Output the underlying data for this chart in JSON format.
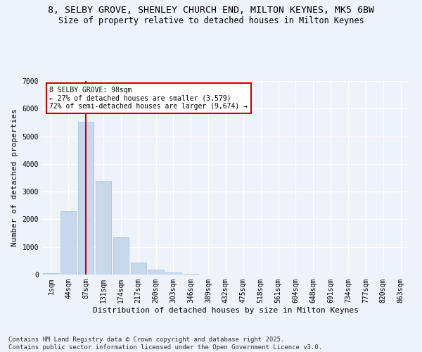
{
  "title1": "8, SELBY GROVE, SHENLEY CHURCH END, MILTON KEYNES, MK5 6BW",
  "title2": "Size of property relative to detached houses in Milton Keynes",
  "xlabel": "Distribution of detached houses by size in Milton Keynes",
  "ylabel": "Number of detached properties",
  "bar_color": "#c8d8ec",
  "bar_edge_color": "#aabfcf",
  "categories": [
    "1sqm",
    "44sqm",
    "87sqm",
    "131sqm",
    "174sqm",
    "217sqm",
    "260sqm",
    "303sqm",
    "346sqm",
    "389sqm",
    "432sqm",
    "475sqm",
    "518sqm",
    "561sqm",
    "604sqm",
    "648sqm",
    "691sqm",
    "734sqm",
    "777sqm",
    "820sqm",
    "863sqm"
  ],
  "values": [
    40,
    2280,
    5520,
    3380,
    1340,
    440,
    175,
    75,
    18,
    4,
    2,
    1,
    1,
    0,
    0,
    0,
    0,
    0,
    0,
    0,
    0
  ],
  "property_bin_index": 2,
  "vline_color": "#cc0000",
  "annotation_text": "8 SELBY GROVE: 98sqm\n← 27% of detached houses are smaller (3,579)\n72% of semi-detached houses are larger (9,674) →",
  "annotation_edge_color": "#cc0000",
  "ylim": [
    0,
    7000
  ],
  "yticks": [
    0,
    1000,
    2000,
    3000,
    4000,
    5000,
    6000,
    7000
  ],
  "background_color": "#eef2f9",
  "grid_color": "#ffffff",
  "footer": "Contains HM Land Registry data © Crown copyright and database right 2025.\nContains public sector information licensed under the Open Government Licence v3.0.",
  "title_fontsize": 9.5,
  "subtitle_fontsize": 8.5,
  "axis_label_fontsize": 8,
  "tick_fontsize": 7,
  "footer_fontsize": 6.5
}
